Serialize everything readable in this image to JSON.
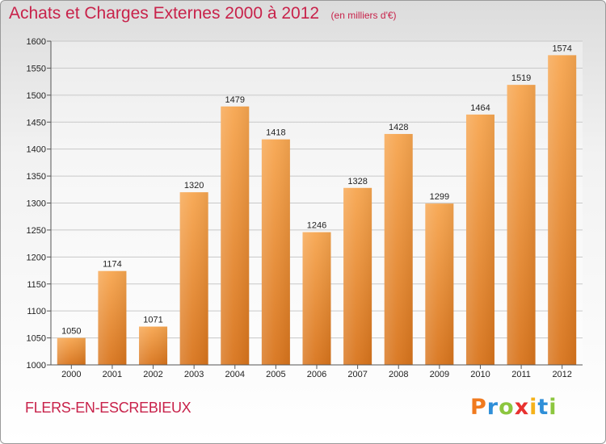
{
  "header": {
    "title": "Achats et Charges Externes 2000 à 2012",
    "unit": "(en milliers d'€)"
  },
  "footer": {
    "commune": "FLERS-EN-ESCREBIEUX",
    "brand": "Proxiti"
  },
  "colors": {
    "title": "#c8224a",
    "bar_top": "#f7a650",
    "bar_bottom": "#d8741c"
  },
  "chart_data": {
    "type": "bar",
    "title": "Achats et Charges Externes 2000 à 2012",
    "categories": [
      "2000",
      "2001",
      "2002",
      "2003",
      "2004",
      "2005",
      "2006",
      "2007",
      "2008",
      "2009",
      "2010",
      "2011",
      "2012"
    ],
    "values": [
      1050,
      1174,
      1071,
      1320,
      1479,
      1418,
      1246,
      1328,
      1428,
      1299,
      1464,
      1519,
      1574
    ],
    "ylim": [
      1000,
      1600
    ],
    "yticks": [
      1000,
      1050,
      1100,
      1150,
      1200,
      1250,
      1300,
      1350,
      1400,
      1450,
      1500,
      1550,
      1600
    ],
    "grid": true,
    "legend": "none",
    "data_labels": true
  }
}
